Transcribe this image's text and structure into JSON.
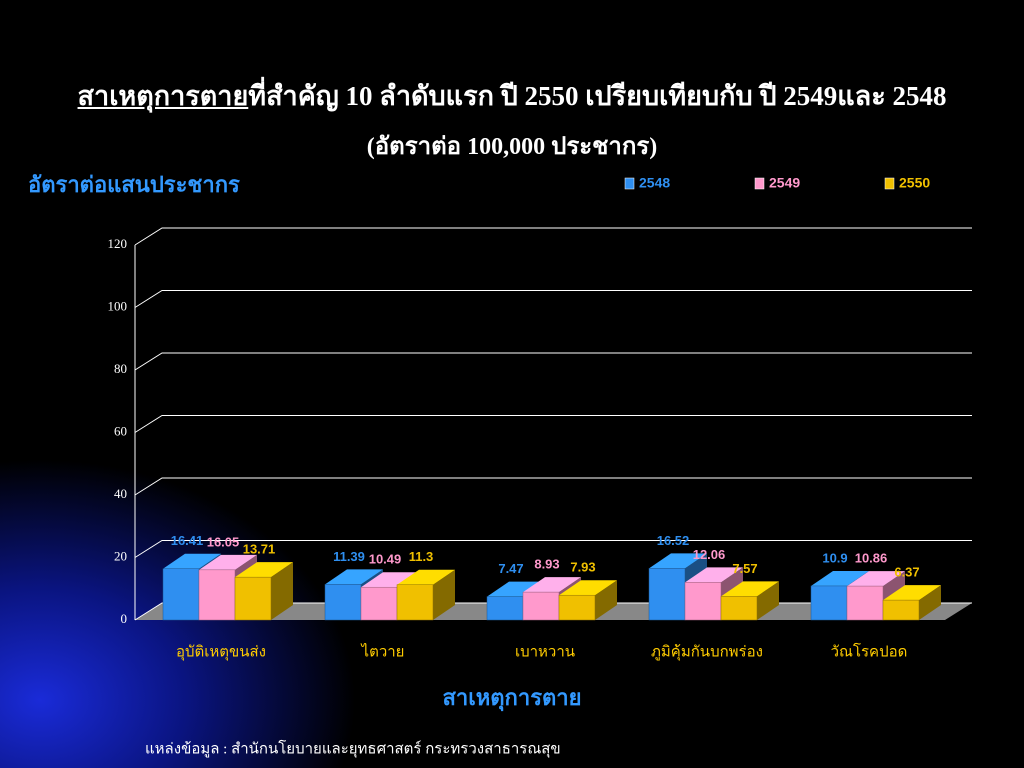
{
  "chart_data": {
    "type": "bar3d",
    "title_underlined": "สาเหตุการตาย",
    "title_rest": "ที่สำคัญ 10 ลำดับแรก ปี 2550 เปรียบเทียบกับ ปี 2549และ 2548",
    "subtitle": "(อัตราต่อ 100,000 ประชากร)",
    "y_label": "อัตราต่อแสนประชากร",
    "x_label": "สาเหตุการตาย",
    "source": "แหล่งข้อมูล : สำนักนโยบายและยุทธศาสตร์ กระทรวงสาธารณสุข",
    "categories": [
      "อุบัติเหตุขนส่ง",
      "ไตวาย",
      "เบาหวาน",
      "ภูมิคุ้มกันบกพร่อง",
      "วัณโรคปอด"
    ],
    "series": [
      {
        "name": "2548",
        "color": "#2f8ff0",
        "values": [
          16.41,
          11.39,
          7.47,
          16.52,
          10.9
        ]
      },
      {
        "name": "2549",
        "color": "#ff99cc",
        "values": [
          16.05,
          10.49,
          8.93,
          12.06,
          10.86
        ]
      },
      {
        "name": "2550",
        "color": "#f0c000",
        "values": [
          13.71,
          11.3,
          7.93,
          7.57,
          6.37
        ]
      }
    ],
    "ylim": [
      0,
      120
    ],
    "yticks": [
      0,
      20,
      40,
      60,
      80,
      100,
      120
    ],
    "grid": true
  }
}
